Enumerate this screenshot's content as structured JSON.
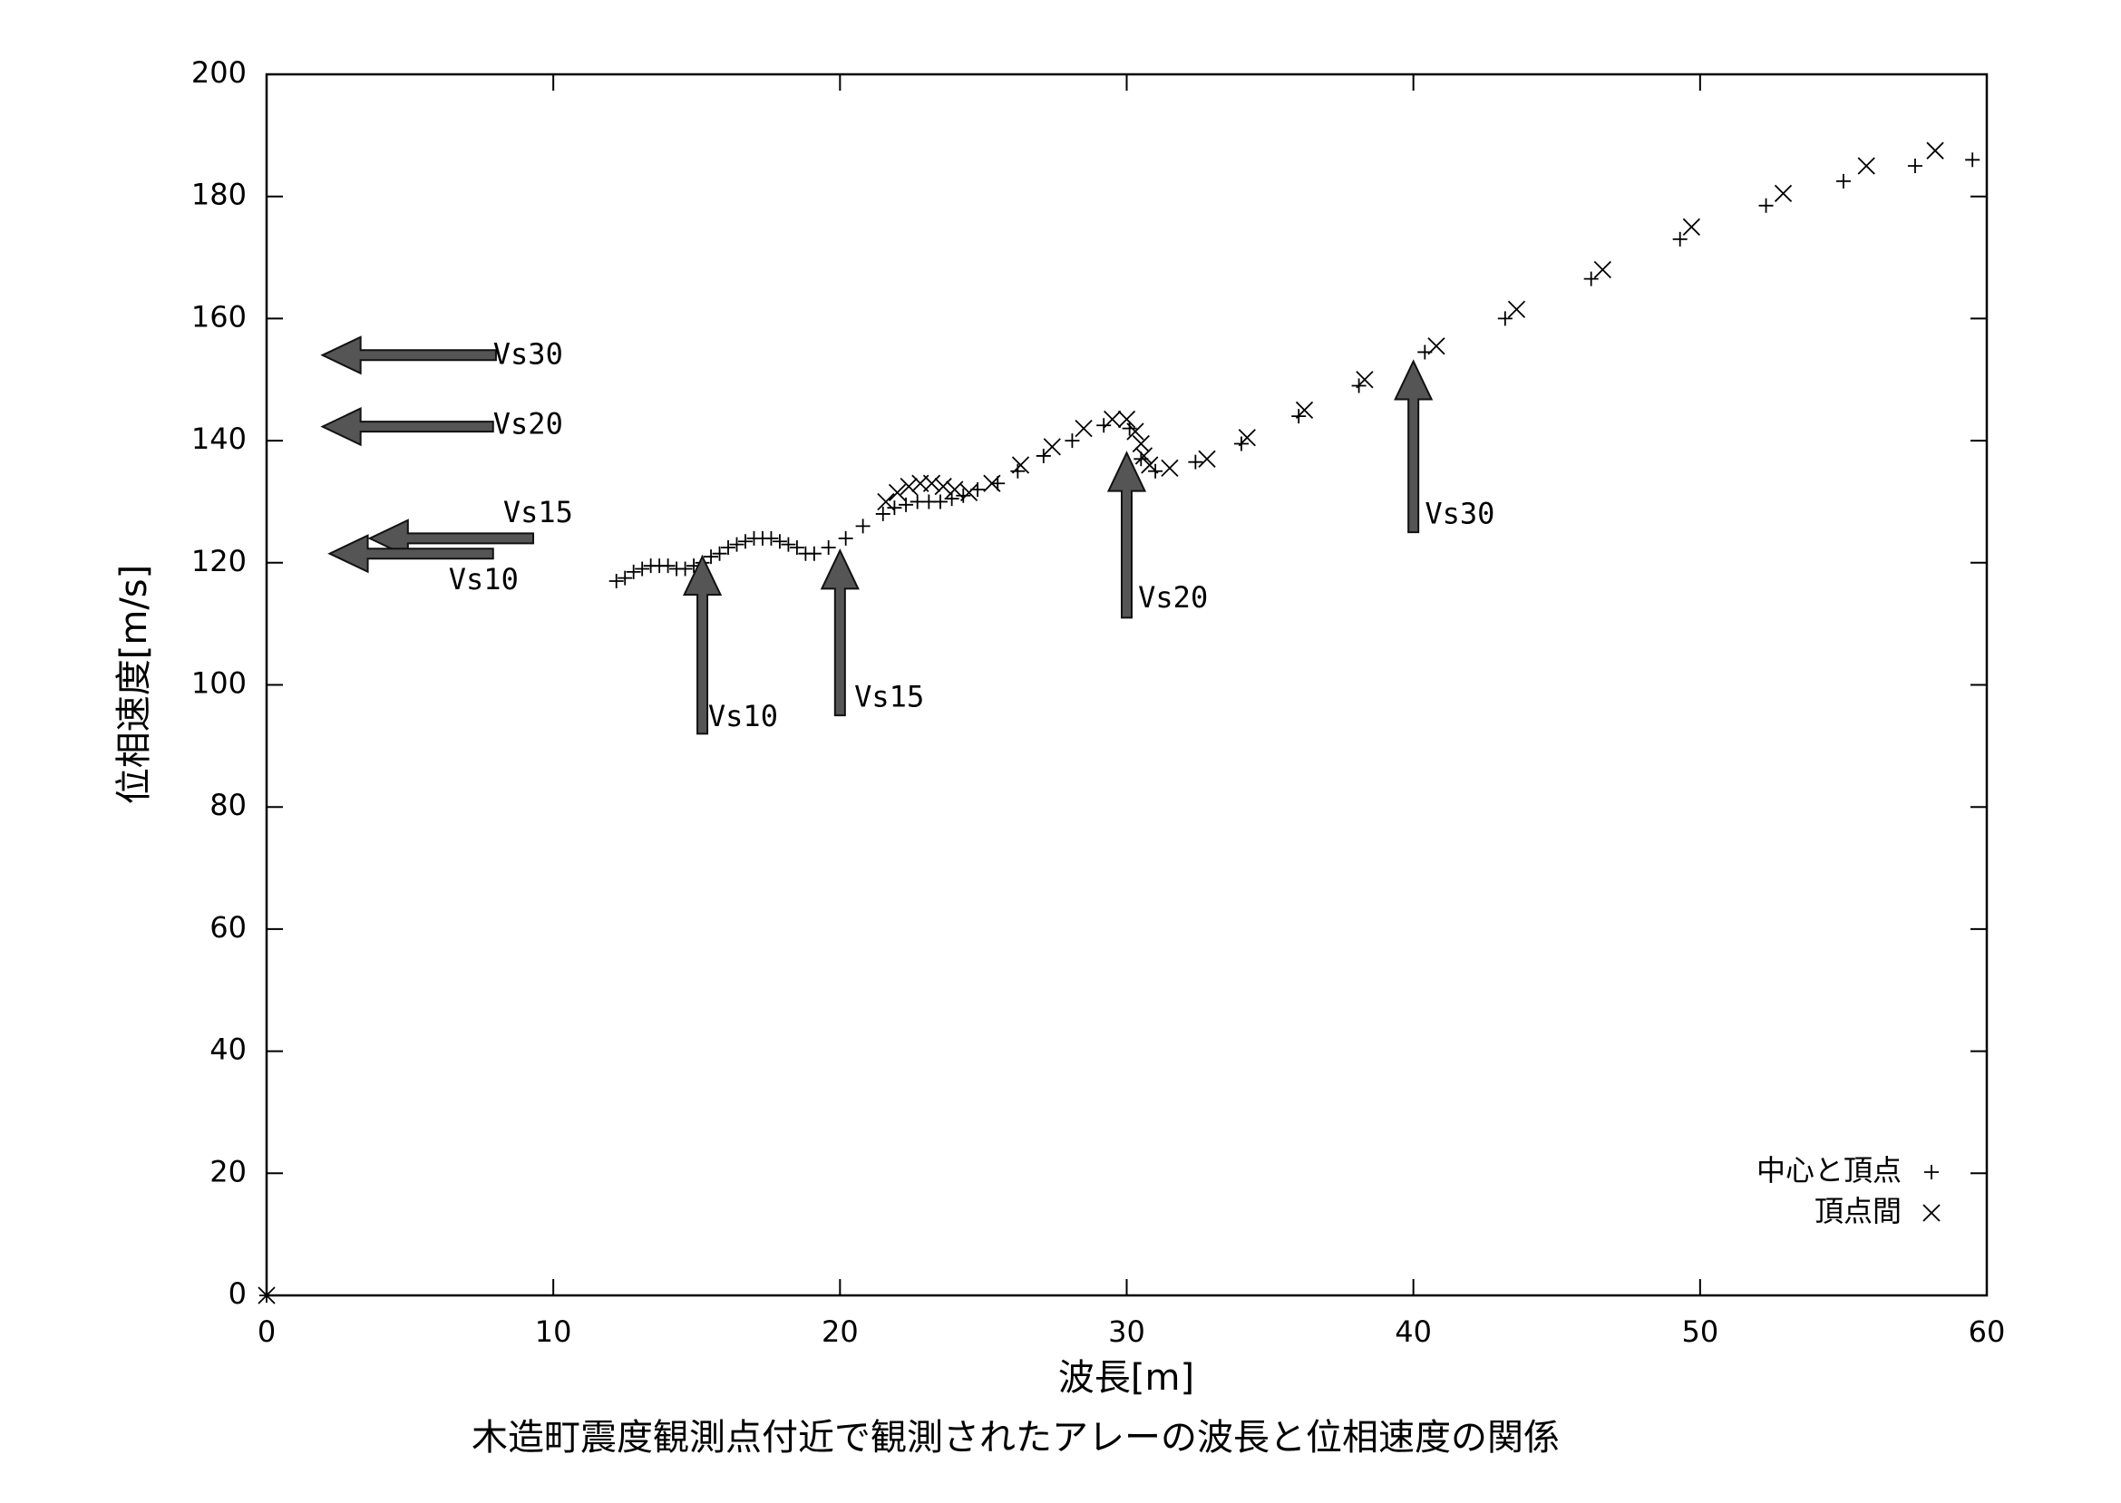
{
  "chart_data": {
    "type": "scatter",
    "title": "木造町震度観測点付近で観測されたアレーの波長と位相速度の関係",
    "xlabel": "波長[m]",
    "ylabel": "位相速度[m/s]",
    "xlim": [
      0,
      60
    ],
    "ylim": [
      0,
      200
    ],
    "xticks": [
      0,
      10,
      20,
      30,
      40,
      50,
      60
    ],
    "yticks": [
      0,
      20,
      40,
      60,
      80,
      100,
      120,
      140,
      160,
      180,
      200
    ],
    "grid": false,
    "legend": "lower-right",
    "series": [
      {
        "name": "中心と頂点",
        "marker": "plus",
        "color": "#000000",
        "x": [
          0,
          12.2,
          12.5,
          12.8,
          13.1,
          13.4,
          13.7,
          14.0,
          14.3,
          14.6,
          14.9,
          15.2,
          15.5,
          15.8,
          16.1,
          16.4,
          16.7,
          17.0,
          17.3,
          17.6,
          17.9,
          18.2,
          18.5,
          18.8,
          19.1,
          19.6,
          20.2,
          20.8,
          21.5,
          21.9,
          22.3,
          22.7,
          23.1,
          23.5,
          23.9,
          24.3,
          24.8,
          25.5,
          26.2,
          27.1,
          28.1,
          29.2,
          30.1,
          30.5,
          31.0,
          32.4,
          34.0,
          36.0,
          38.1,
          40.4,
          43.2,
          46.2,
          49.3,
          52.3,
          55.0,
          57.5,
          59.5
        ],
        "values": [
          0,
          117,
          117.5,
          118.5,
          119,
          119.5,
          119.5,
          119.5,
          119,
          119,
          119.5,
          120,
          121,
          121.5,
          122.5,
          123,
          123.5,
          124,
          124,
          124,
          123.5,
          123,
          122.5,
          121.5,
          121.5,
          122.5,
          124,
          126,
          128,
          129,
          129.5,
          130,
          130,
          130,
          130.5,
          131,
          132,
          133,
          135,
          137.5,
          140,
          142.5,
          142,
          137,
          135,
          136.5,
          139.5,
          144,
          149,
          154.5,
          160,
          166.5,
          173,
          178.5,
          182.5,
          185,
          186
        ]
      },
      {
        "name": "頂点間",
        "marker": "cross",
        "color": "#000000",
        "x": [
          0,
          21.6,
          22.0,
          22.4,
          22.8,
          23.2,
          23.6,
          24.0,
          24.5,
          25.3,
          26.3,
          27.4,
          28.5,
          29.5,
          30.0,
          30.3,
          30.5,
          30.6,
          30.8,
          31.5,
          32.8,
          34.2,
          36.2,
          38.3,
          40.8,
          43.6,
          46.6,
          49.7,
          52.9,
          55.8,
          58.2
        ],
        "values": [
          0,
          130,
          131.5,
          132.5,
          133,
          133,
          132.5,
          132,
          131.5,
          133,
          136,
          139,
          142,
          143.5,
          143.5,
          141.5,
          139.5,
          137.5,
          136,
          135.5,
          137,
          140.5,
          145,
          150,
          155.5,
          161.5,
          168,
          175,
          180.5,
          185,
          187.5
        ]
      }
    ],
    "annotations": [
      {
        "text": "Vs30",
        "from": [
          8,
          154
        ],
        "to": [
          1.95,
          154
        ],
        "text_xy": [
          7.9,
          153.9
        ]
      },
      {
        "text": "Vs20",
        "from": [
          7.9,
          142.3
        ],
        "to": [
          1.95,
          142.3
        ],
        "text_xy": [
          7.9,
          142.5
        ]
      },
      {
        "text": "Vs15",
        "from": [
          9.3,
          124
        ],
        "to": [
          3.6,
          124
        ],
        "text_xy": [
          8.25,
          128
        ]
      },
      {
        "text": "Vs10",
        "from": [
          7.9,
          121.5
        ],
        "to": [
          2.2,
          121.5
        ],
        "text_xy": [
          6.35,
          117
        ]
      },
      {
        "text": "Vs10",
        "from": [
          15.2,
          92
        ],
        "to": [
          15.2,
          121
        ],
        "text_xy": [
          15.4,
          94.6
        ]
      },
      {
        "text": "Vs15",
        "from": [
          20,
          95
        ],
        "to": [
          20,
          122
        ],
        "text_xy": [
          20.5,
          97.8
        ]
      },
      {
        "text": "Vs20",
        "from": [
          30,
          111
        ],
        "to": [
          30,
          138
        ],
        "text_xy": [
          30.4,
          114
        ]
      },
      {
        "text": "Vs30",
        "from": [
          40,
          125
        ],
        "to": [
          40,
          153
        ],
        "text_xy": [
          40.4,
          127.8
        ]
      }
    ]
  }
}
